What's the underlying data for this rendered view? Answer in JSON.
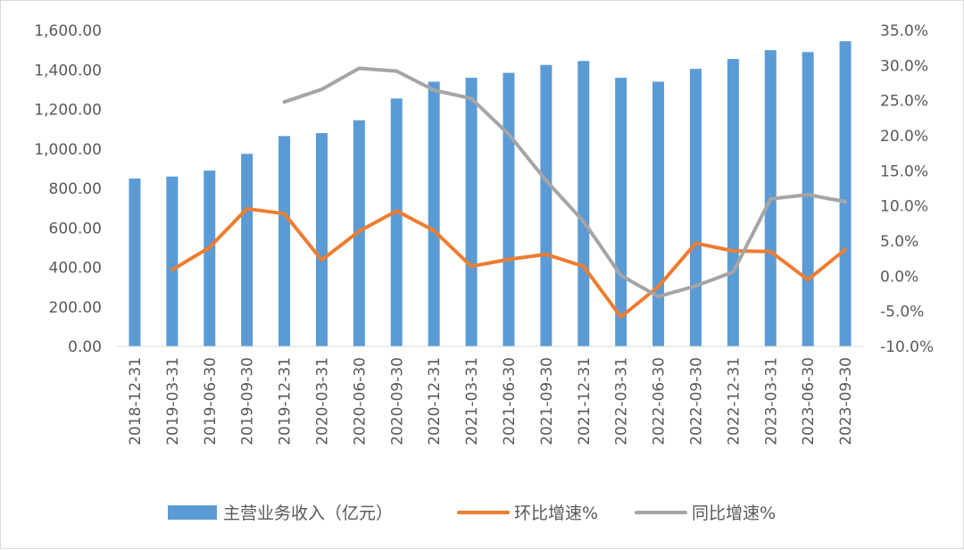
{
  "chart_data": {
    "type": "bar",
    "categories": [
      "2018-12-31",
      "2019-03-31",
      "2019-06-30",
      "2019-09-30",
      "2019-12-31",
      "2020-03-31",
      "2020-06-30",
      "2020-09-30",
      "2020-12-31",
      "2021-03-31",
      "2021-06-30",
      "2021-09-30",
      "2021-12-31",
      "2022-03-31",
      "2022-06-30",
      "2022-09-30",
      "2022-12-31",
      "2023-03-31",
      "2023-06-30",
      "2023-09-30"
    ],
    "y_left": {
      "ylim": [
        0,
        1600
      ],
      "ticks": [
        "0.00",
        "200.00",
        "400.00",
        "600.00",
        "800.00",
        "1,000.00",
        "1,200.00",
        "1,400.00",
        "1,600.00"
      ]
    },
    "y_right": {
      "ylim": [
        -10,
        35
      ],
      "ticks": [
        "-10.0%",
        "-5.0%",
        "0.0%",
        "5.0%",
        "10.0%",
        "15.0%",
        "20.0%",
        "25.0%",
        "30.0%",
        "35.0%"
      ]
    },
    "series": [
      {
        "name": "主营业务收入（亿元）",
        "kind": "bar",
        "axis": "left",
        "color": "#5b9bd5",
        "values": [
          850,
          860,
          890,
          975,
          1065,
          1080,
          1145,
          1255,
          1340,
          1360,
          1385,
          1425,
          1445,
          1360,
          1340,
          1405,
          1455,
          1500,
          1490,
          1545
        ]
      },
      {
        "name": "环比增速%",
        "kind": "line",
        "axis": "right",
        "color": "#ed7d31",
        "values": [
          null,
          0.9,
          4.1,
          9.6,
          8.9,
          2.3,
          6.4,
          9.3,
          6.5,
          1.4,
          2.4,
          3.1,
          1.4,
          -5.8,
          -1.5,
          4.7,
          3.6,
          3.5,
          -0.5,
          3.8
        ]
      },
      {
        "name": "同比增速%",
        "kind": "line",
        "axis": "right",
        "color": "#a5a5a5",
        "values": [
          null,
          null,
          null,
          null,
          24.8,
          26.6,
          29.6,
          29.2,
          26.5,
          25.3,
          20.2,
          13.6,
          7.8,
          0.1,
          -2.9,
          -1.4,
          0.6,
          11.0,
          11.6,
          10.6
        ]
      }
    ],
    "legend_position": "bottom",
    "grid": false
  }
}
